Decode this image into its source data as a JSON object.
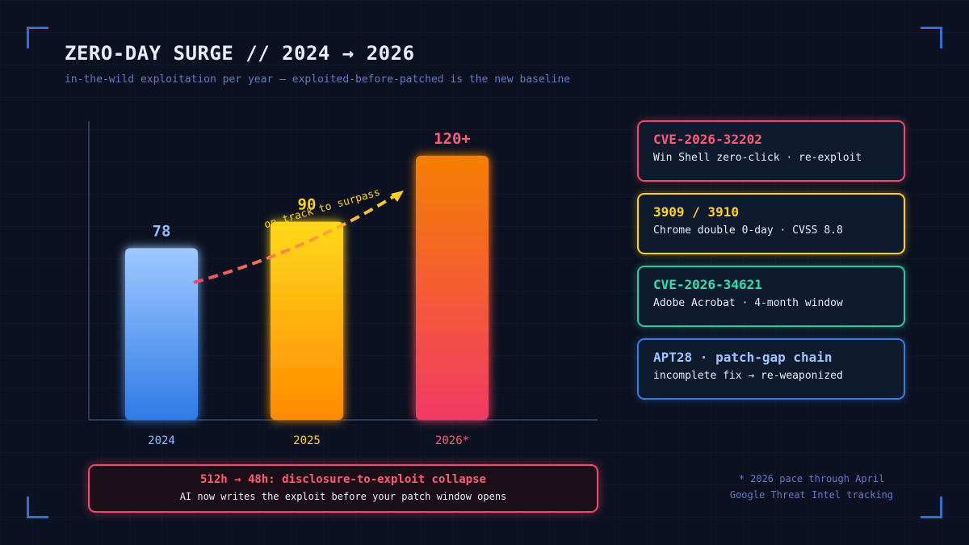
{
  "colors": {
    "background": "#0b1120",
    "accent_blue": "#2f6fd6",
    "pink": "#f0476a",
    "yellow": "#ffd21a",
    "teal": "#2ec9a0",
    "blue": "#3a7be0"
  },
  "header": {
    "title": "ZERO-DAY SURGE // 2024 → 2026",
    "subtitle": "in-the-wild exploitation per year — exploited-before-patched is the new baseline"
  },
  "chart_data": {
    "type": "bar",
    "categories": [
      "2024",
      "2025",
      "2026*"
    ],
    "values": [
      78,
      90,
      120
    ],
    "value_labels": [
      "78",
      "90",
      "120+"
    ],
    "ylim": [
      0,
      135
    ],
    "grid": false,
    "bar_colors": [
      [
        "#9ec8ff",
        "#2f7be6"
      ],
      [
        "#ffd81a",
        "#ff8a00"
      ],
      [
        "#f57f00",
        "#f23a66"
      ]
    ],
    "label_colors": [
      "#8fbcff",
      "#ffd21a",
      "#ff5a78"
    ],
    "annotation": "on track to surpass"
  },
  "cards": [
    {
      "title": "CVE-2026-32202",
      "desc": "Win Shell zero-click · re-exploit",
      "color": "#f0476a",
      "title_color": "#ff5a78"
    },
    {
      "title": "3909 / 3910",
      "desc": "Chrome double 0-day · CVSS 8.8",
      "color": "#ffd21a",
      "title_color": "#ffd21a"
    },
    {
      "title": "CVE-2026-34621",
      "desc": "Adobe Acrobat · 4-month window",
      "color": "#2ec9a0",
      "title_color": "#2ee0b0"
    },
    {
      "title": "APT28 · patch-gap chain",
      "desc": "incomplete fix → re-weaponized",
      "color": "#3a7be0",
      "title_color": "#9ec4ff"
    }
  ],
  "callout": {
    "title": "512h → 48h: disclosure-to-exploit collapse",
    "desc": "AI now writes the exploit before your patch window opens"
  },
  "footnote": {
    "line1": "* 2026 pace through April",
    "line2": "Google Threat Intel tracking"
  }
}
